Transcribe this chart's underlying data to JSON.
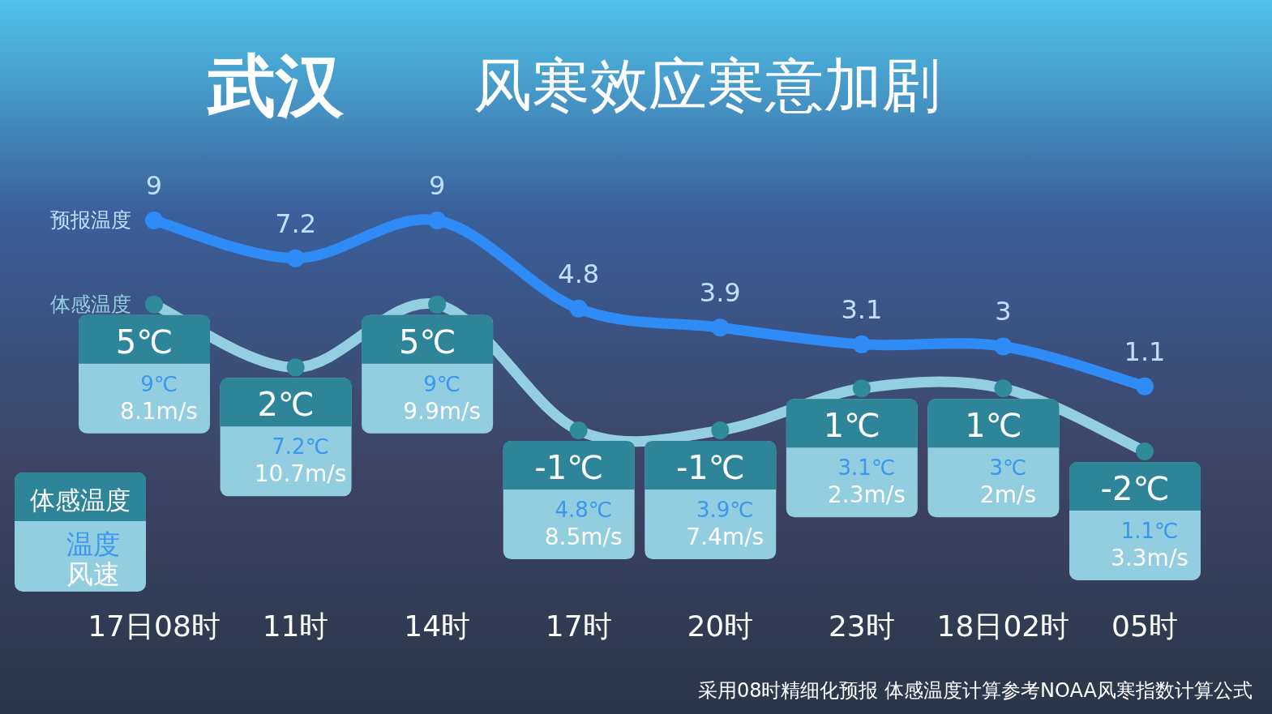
{
  "chart_data": {
    "type": "line",
    "title": "武汉",
    "subtitle": "风寒效应寒意加剧",
    "categories": [
      "17日08时",
      "11时",
      "14时",
      "17时",
      "20时",
      "23时",
      "18日02时",
      "05时"
    ],
    "series": [
      {
        "name": "预报温度",
        "color": "#2f8cf7",
        "values": [
          9,
          7.2,
          9,
          4.8,
          3.9,
          3.1,
          3,
          1.1
        ],
        "value_labels": [
          "9",
          "7.2",
          "9",
          "4.8",
          "3.9",
          "3.1",
          "3",
          "1.1"
        ]
      },
      {
        "name": "体感温度",
        "color": "#93cfe0",
        "values": [
          5,
          2,
          5,
          -1,
          -1,
          1,
          1,
          -2
        ],
        "value_labels": [
          "5℃",
          "2℃",
          "5℃",
          "-1℃",
          "-1℃",
          "1℃",
          "1℃",
          "-2℃"
        ]
      }
    ],
    "marker": "circle",
    "legend": "left",
    "annotations": [
      "温度",
      "风速",
      "8.1m/s",
      "10.7m/s",
      "9.9m/s",
      "8.5m/s",
      "7.4m/s",
      "2.3m/s",
      "2m/s",
      "3.3m/s",
      "9℃",
      "7.2℃",
      "9℃",
      "4.8℃",
      "3.9℃",
      "3.1℃",
      "3℃",
      "1.1℃",
      "采用08时精细化预报 体感温度计算参考NOAA风寒指数计算公式"
    ]
  }
}
